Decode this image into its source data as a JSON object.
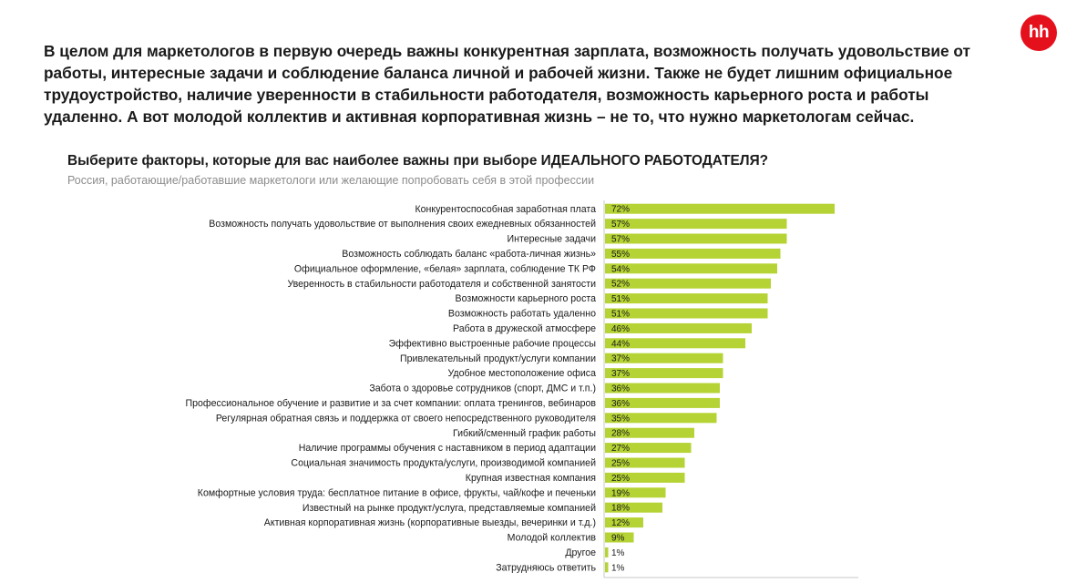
{
  "header": {
    "headline": "В целом для маркетологов в первую очередь важны конкурентная зарплата, возможность получать удовольствие от работы, интересные задачи и соблюдение баланса личной и рабочей жизни. Также не будет лишним официальное трудоустройство, наличие уверенности в стабильности работодателя, возможность карьерного роста и работы удаленно. А вот молодой коллектив и активная корпоративная жизнь – не то, что нужно маркетологам сейчас.",
    "logo_text": "hh",
    "logo_color": "#e4111d"
  },
  "chart_data": {
    "type": "bar",
    "orientation": "horizontal",
    "title": "Выберите факторы, которые для вас наиболее важны при выборе ИДЕАЛЬНОГО РАБОТОДАТЕЛЯ?",
    "subtitle": "Россия, работающие/работавшие маркетологи или желающие попробовать себя в этой профессии",
    "bar_color": "#b5d334",
    "axis_color": "#c8c8c8",
    "xlim": [
      0,
      100
    ],
    "grid": false,
    "categories": [
      "Конкурентоспособная заработная плата",
      "Возможность получать удовольствие от выполнения своих ежедневных обязанностей",
      "Интересные задачи",
      "Возможность соблюдать баланс «работа-личная жизнь»",
      "Официальное оформление, «белая» зарплата, соблюдение ТК РФ",
      "Уверенность в стабильности работодателя и собственной занятости",
      "Возможности карьерного роста",
      "Возможность работать удаленно",
      "Работа в дружеской атмосфере",
      "Эффективно выстроенные рабочие процессы",
      "Привлекательный продукт/услуги компании",
      "Удобное местоположение офиса",
      "Забота о здоровье сотрудников (спорт, ДМС и т.п.)",
      "Профессиональное обучение и развитие и за счет компании: оплата тренингов, вебинаров",
      "Регулярная обратная связь и поддержка от своего непосредственного руководителя",
      "Гибкий/сменный график работы",
      "Наличие программы обучения с наставником в период адаптации",
      "Социальная значимость продукта/услуги, производимой компанией",
      "Крупная известная компания",
      "Комфортные условия труда: бесплатное питание в офисе, фрукты, чай/кофе и печеньки",
      "Известный на рынке продукт/услуга, представляемые компанией",
      "Активная корпоративная жизнь (корпоративные выезды, вечеринки и т.д.)",
      "Молодой коллектив",
      "Другое",
      "Затрудняюсь ответить"
    ],
    "values": [
      72,
      57,
      57,
      55,
      54,
      52,
      51,
      51,
      46,
      44,
      37,
      37,
      36,
      36,
      35,
      28,
      27,
      25,
      25,
      19,
      18,
      12,
      9,
      1,
      1
    ],
    "value_labels": [
      "72%",
      "57%",
      "57%",
      "55%",
      "54%",
      "52%",
      "51%",
      "51%",
      "46%",
      "44%",
      "37%",
      "37%",
      "36%",
      "36%",
      "35%",
      "28%",
      "27%",
      "25%",
      "25%",
      "19%",
      "18%",
      "12%",
      "9%",
      "1%",
      "1%"
    ]
  }
}
